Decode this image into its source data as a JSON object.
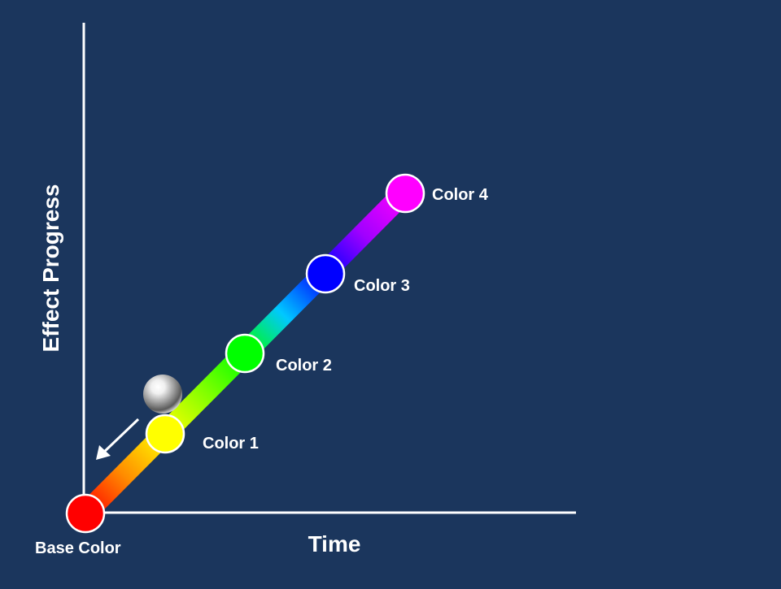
{
  "axes": {
    "x_label": "Time",
    "y_label": "Effect Progress",
    "color": "#ffffff"
  },
  "background": "#1b365d",
  "stops": [
    {
      "label": "Base Color",
      "color": "#ff0000"
    },
    {
      "label": "Color 1",
      "color": "#ffff00"
    },
    {
      "label": "Color 2",
      "color": "#00ff00"
    },
    {
      "label": "Color 3",
      "color": "#0000ff"
    },
    {
      "label": "Color 4",
      "color": "#ff00ff"
    }
  ],
  "gradient_colors": [
    "#ff0000",
    "#ff8c00",
    "#ffff00",
    "#7fff00",
    "#00ff00",
    "#00c8ff",
    "#0000ff",
    "#a000ff",
    "#ff00ff"
  ],
  "indicator": {
    "icon": "silver-ball-icon",
    "arrow_icon": "arrow-down-left-icon"
  }
}
